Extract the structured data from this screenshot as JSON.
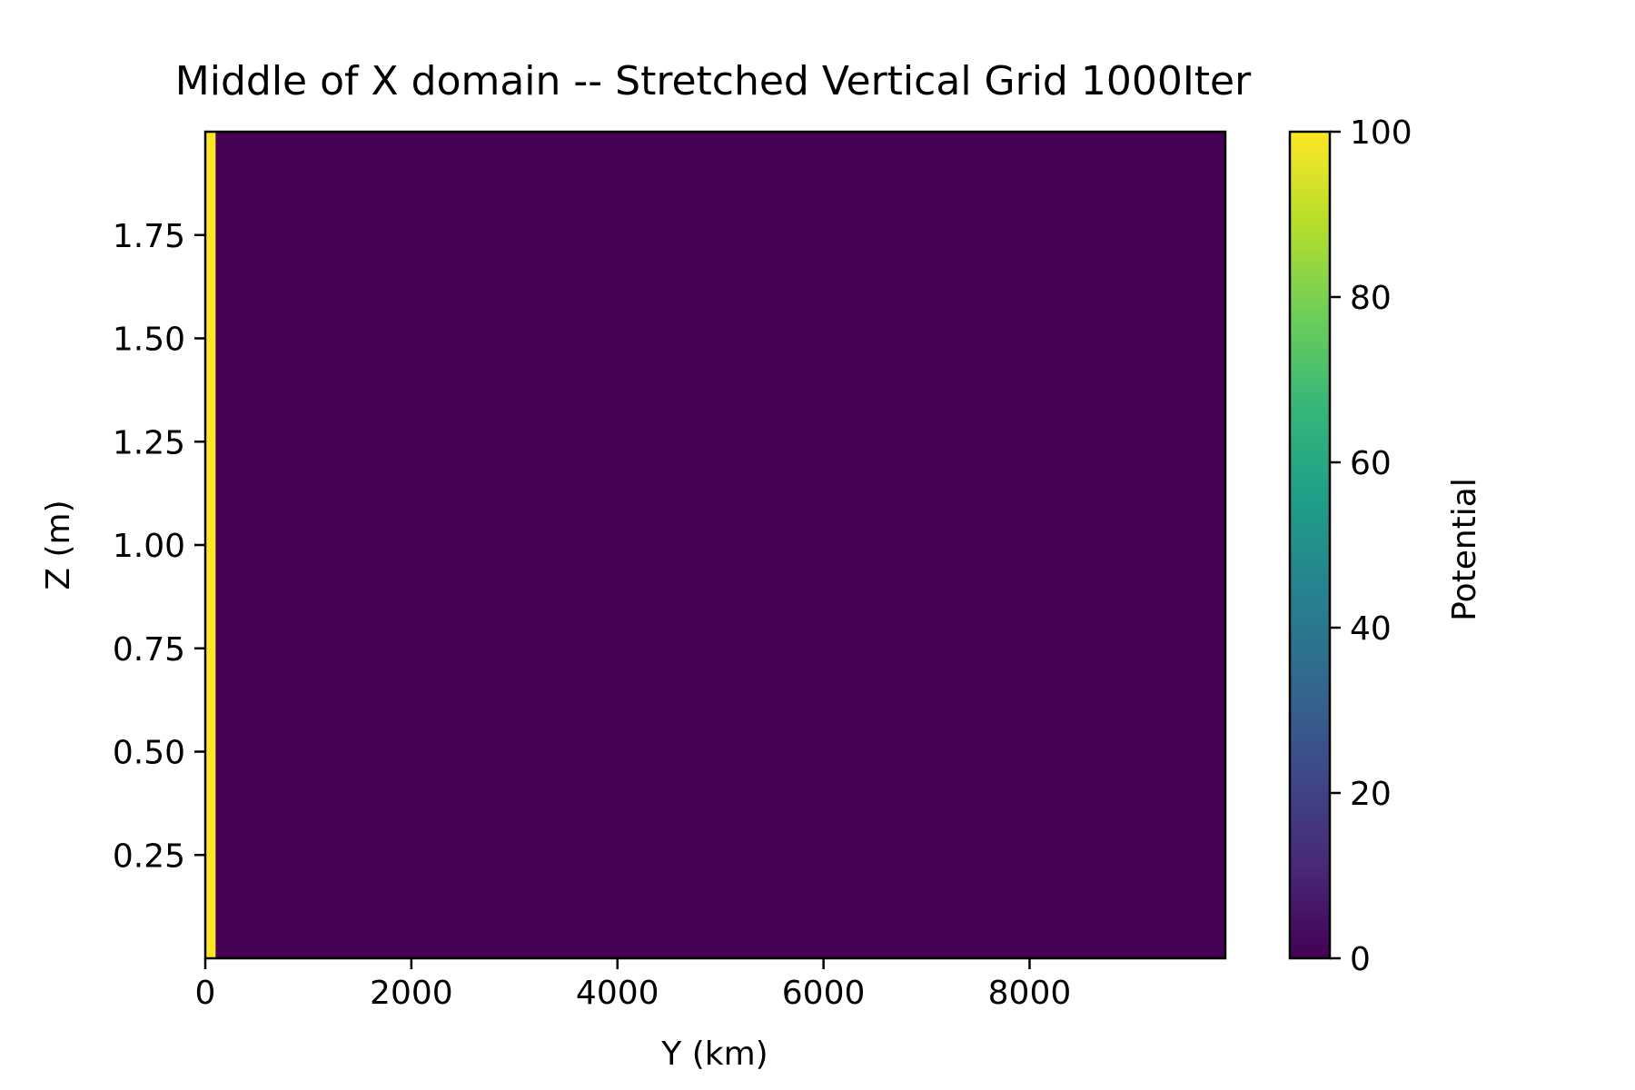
{
  "chart_data": {
    "type": "heatmap",
    "title": "Middle of X domain -- Stretched Vertical Grid 1000Iter",
    "xlabel": "Y (km)",
    "ylabel": "Z (m)",
    "xlim": [
      0,
      9900
    ],
    "ylim": [
      0,
      2.0
    ],
    "xticks": [
      0,
      2000,
      4000,
      6000,
      8000
    ],
    "xtick_labels": [
      "0",
      "2000",
      "4000",
      "6000",
      "8000"
    ],
    "yticks": [
      0.25,
      0.5,
      0.75,
      1.0,
      1.25,
      1.5,
      1.75
    ],
    "ytick_labels": [
      "0.25",
      "0.50",
      "0.75",
      "1.00",
      "1.25",
      "1.50",
      "1.75"
    ],
    "cells": [
      {
        "x0": 0,
        "x1": 100,
        "y0": 0,
        "y1": 2.0,
        "value": 100
      },
      {
        "x0": 100,
        "x1": 9900,
        "y0": 0,
        "y1": 2.0,
        "value": 0
      }
    ],
    "grid": false,
    "colorbar": {
      "label": "Potential",
      "range": [
        0,
        100
      ],
      "ticks": [
        0,
        20,
        40,
        60,
        80,
        100
      ],
      "tick_labels": [
        "0",
        "20",
        "40",
        "60",
        "80",
        "100"
      ],
      "colormap": "viridis",
      "colors": [
        "#440154",
        "#482878",
        "#3e4989",
        "#31688e",
        "#26828e",
        "#1f9e89",
        "#35b779",
        "#6ece58",
        "#b5de2b",
        "#fde725"
      ]
    }
  }
}
